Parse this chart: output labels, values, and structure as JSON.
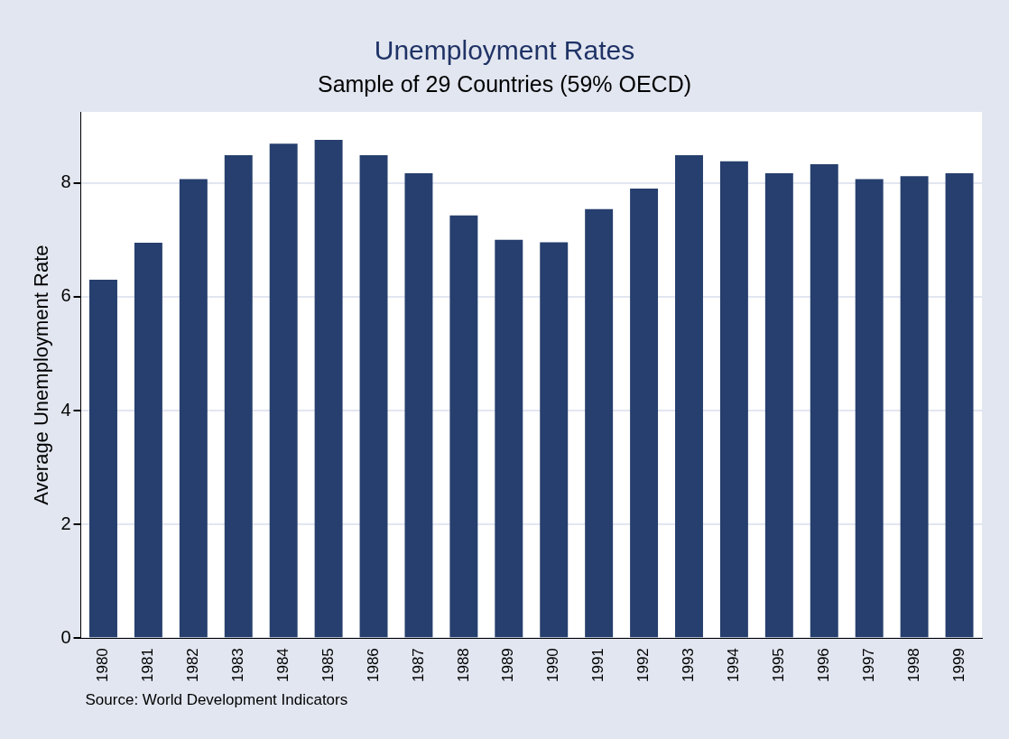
{
  "chart_data": {
    "type": "bar",
    "title": "Unemployment Rates",
    "subtitle": "Sample of 29 Countries (59% OECD)",
    "ylabel": "Average Unemployment Rate",
    "categories": [
      "1980",
      "1981",
      "1982",
      "1983",
      "1984",
      "1985",
      "1986",
      "1987",
      "1988",
      "1989",
      "1990",
      "1991",
      "1992",
      "1993",
      "1994",
      "1995",
      "1996",
      "1997",
      "1998",
      "1999"
    ],
    "values": [
      6.3,
      6.95,
      8.07,
      8.49,
      8.69,
      8.76,
      8.49,
      8.17,
      7.43,
      7.0,
      6.96,
      7.54,
      7.9,
      8.49,
      8.38,
      8.17,
      8.33,
      8.07,
      8.12,
      8.17
    ],
    "color": "#263f6e",
    "ylim": [
      0,
      9.25
    ],
    "yticks": [
      0,
      2,
      4,
      6,
      8
    ],
    "grid": "y",
    "annotations": [
      "Source: World Development Indicators"
    ]
  }
}
